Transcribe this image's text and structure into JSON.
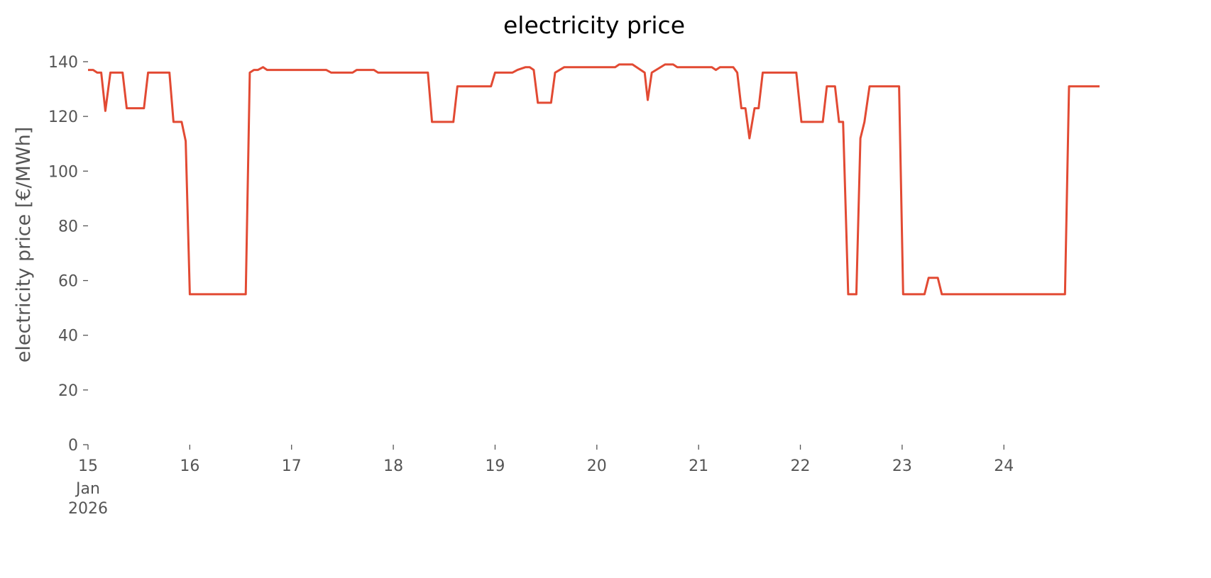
{
  "chart_data": {
    "type": "line",
    "title": "electricity price",
    "y_label": "electricity price [€/MWh]",
    "x_month": "Jan",
    "x_year": "2026",
    "x": [
      15.0,
      15.05,
      15.09,
      15.13,
      15.17,
      15.22,
      15.34,
      15.38,
      15.55,
      15.59,
      15.8,
      15.84,
      15.92,
      15.96,
      16.0,
      16.26,
      16.55,
      16.59,
      16.63,
      16.67,
      16.72,
      16.76,
      17.34,
      17.39,
      17.6,
      17.64,
      17.81,
      17.85,
      18.34,
      18.38,
      18.59,
      18.63,
      18.96,
      19.0,
      19.17,
      19.22,
      19.3,
      19.34,
      19.38,
      19.42,
      19.55,
      19.59,
      19.68,
      20.18,
      20.22,
      20.35,
      20.47,
      20.5,
      20.54,
      20.67,
      20.75,
      20.79,
      21.13,
      21.17,
      21.21,
      21.34,
      21.38,
      21.42,
      21.46,
      21.5,
      21.55,
      21.59,
      21.63,
      21.96,
      22.01,
      22.22,
      22.26,
      22.34,
      22.38,
      22.42,
      22.47,
      22.55,
      22.59,
      22.63,
      22.68,
      22.97,
      23.01,
      23.22,
      23.26,
      23.35,
      23.39,
      24.6,
      24.64,
      24.94
    ],
    "series": [
      {
        "name": "electricity price",
        "color": "#e24a33",
        "values": [
          137,
          137,
          136,
          136,
          122,
          136,
          136,
          123,
          123,
          136,
          136,
          118,
          118,
          111,
          55,
          55,
          55,
          136,
          137,
          137,
          138,
          137,
          137,
          136,
          136,
          137,
          137,
          136,
          136,
          118,
          118,
          131,
          131,
          136,
          136,
          137,
          138,
          138,
          137,
          125,
          125,
          136,
          138,
          138,
          139,
          139,
          136,
          126,
          136,
          139,
          139,
          138,
          138,
          137,
          138,
          138,
          136,
          123,
          123,
          112,
          123,
          123,
          136,
          136,
          118,
          118,
          131,
          131,
          118,
          118,
          55,
          55,
          112,
          118,
          131,
          131,
          55,
          55,
          61,
          61,
          55,
          55,
          131,
          131
        ]
      }
    ],
    "xlim": [
      15,
      24.94
    ],
    "xticks": [
      15,
      16,
      17,
      18,
      19,
      20,
      21,
      22,
      23,
      24
    ],
    "ylim": [
      0,
      145
    ],
    "yticks": [
      0,
      20,
      40,
      60,
      80,
      100,
      120,
      140
    ],
    "grid": false
  }
}
